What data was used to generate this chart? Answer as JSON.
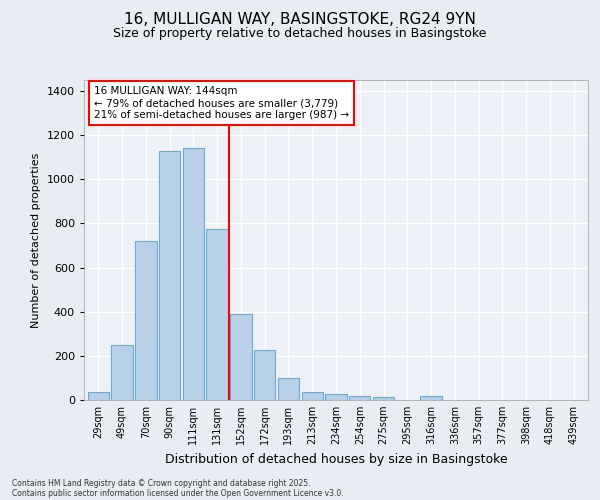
{
  "title_line1": "16, MULLIGAN WAY, BASINGSTOKE, RG24 9YN",
  "title_line2": "Size of property relative to detached houses in Basingstoke",
  "xlabel": "Distribution of detached houses by size in Basingstoke",
  "ylabel": "Number of detached properties",
  "categories": [
    "29sqm",
    "49sqm",
    "70sqm",
    "90sqm",
    "111sqm",
    "131sqm",
    "152sqm",
    "172sqm",
    "193sqm",
    "213sqm",
    "234sqm",
    "254sqm",
    "275sqm",
    "295sqm",
    "316sqm",
    "336sqm",
    "357sqm",
    "377sqm",
    "398sqm",
    "418sqm",
    "439sqm"
  ],
  "values": [
    35,
    248,
    720,
    1130,
    1140,
    775,
    390,
    228,
    100,
    35,
    25,
    20,
    15,
    0,
    20,
    0,
    0,
    0,
    0,
    0,
    0
  ],
  "bar_color": "#b8d0e8",
  "bar_edge_color": "#6aaad4",
  "annotation_line1": "16 MULLIGAN WAY: 144sqm",
  "annotation_line2": "← 79% of detached houses are smaller (3,779)",
  "annotation_line3": "21% of semi-detached houses are larger (987) →",
  "ylim": [
    0,
    1450
  ],
  "yticks": [
    0,
    200,
    400,
    600,
    800,
    1000,
    1200,
    1400
  ],
  "footer_line1": "Contains HM Land Registry data © Crown copyright and database right 2025.",
  "footer_line2": "Contains public sector information licensed under the Open Government Licence v3.0.",
  "bg_color": "#e8edf4",
  "plot_bg_color": "#edf1f7"
}
